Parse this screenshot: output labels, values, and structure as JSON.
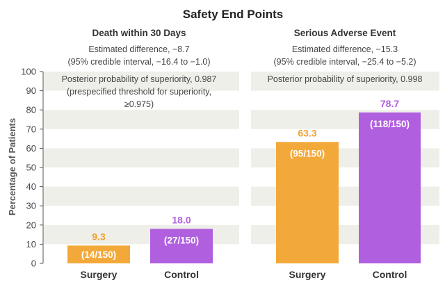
{
  "chart_data": {
    "type": "bar",
    "title": "Safety End Points",
    "ylabel": "Percentage of Patients",
    "ylim": [
      0,
      100
    ],
    "yticks": [
      0,
      10,
      20,
      30,
      40,
      50,
      60,
      70,
      80,
      90,
      100
    ],
    "categories": [
      "Surgery",
      "Control"
    ],
    "colors": {
      "Surgery": "#f3a93a",
      "Control": "#b05fdf",
      "band": "#efefea",
      "label_surgery": "#f0a030",
      "label_control": "#b05fdf"
    },
    "panels": [
      {
        "title": "Death within 30 Days",
        "estimate_line1": "Estimated difference, −8.7",
        "estimate_line2": "(95% credible interval, −16.4 to −1.0)",
        "posterior_lines": [
          "Posterior probability of superiority, 0.987",
          "(prespecified threshold for superiority,",
          "≥0.975)"
        ],
        "values": [
          9.3,
          18.0
        ],
        "value_labels": [
          "9.3",
          "18.0"
        ],
        "count_labels": [
          "(14/150)",
          "(27/150)"
        ]
      },
      {
        "title": "Serious Adverse Event",
        "estimate_line1": "Estimated difference, −15.3",
        "estimate_line2": "(95% credible interval, −25.4 to −5.2)",
        "posterior_lines": [
          "Posterior probability of superiority, 0.998"
        ],
        "values": [
          63.3,
          78.7
        ],
        "value_labels": [
          "63.3",
          "78.7"
        ],
        "count_labels": [
          "(95/150)",
          "(118/150)"
        ]
      }
    ]
  }
}
